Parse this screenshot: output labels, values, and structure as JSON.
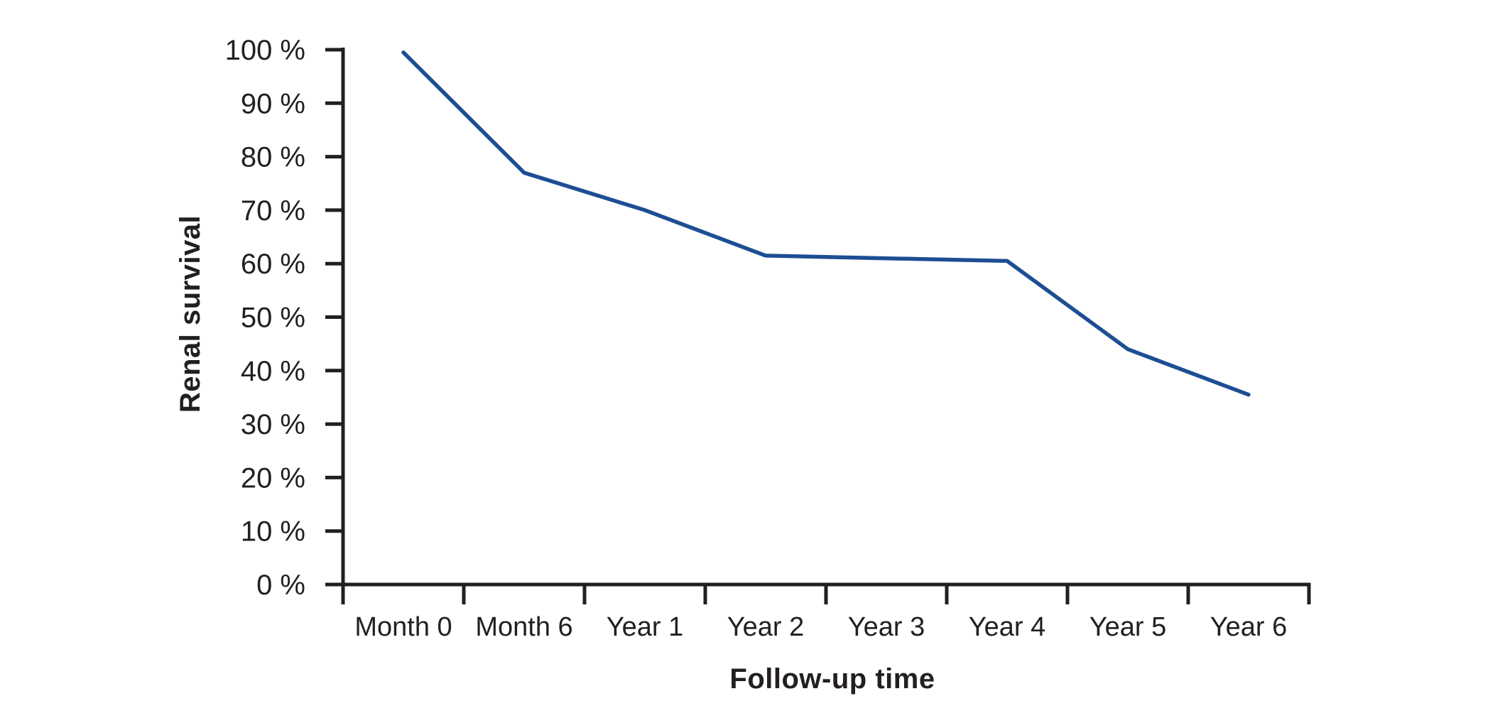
{
  "chart_data": {
    "type": "line",
    "title": "",
    "xlabel": "Follow-up time",
    "ylabel": "Renal survival",
    "x_categories": [
      "Month 0",
      "Month 6",
      "Year 1",
      "Year 2",
      "Year 3",
      "Year 4",
      "Year 5",
      "Year 6"
    ],
    "series": [
      {
        "name": "Renal survival",
        "values": [
          99.5,
          77,
          70,
          61.5,
          61,
          60.5,
          44,
          35.5
        ]
      }
    ],
    "y_ticks": [
      "0 %",
      "10 %",
      "20 %",
      "30 %",
      "40 %",
      "50 %",
      "60 %",
      "70 %",
      "80 %",
      "90 %",
      "100 %"
    ],
    "ylim": [
      0,
      100
    ],
    "grid": false,
    "legend": "none",
    "line_color": "#1d4e94",
    "axis_color": "#231f20",
    "text_color": "#231f20",
    "background_color": "#ffffff"
  }
}
